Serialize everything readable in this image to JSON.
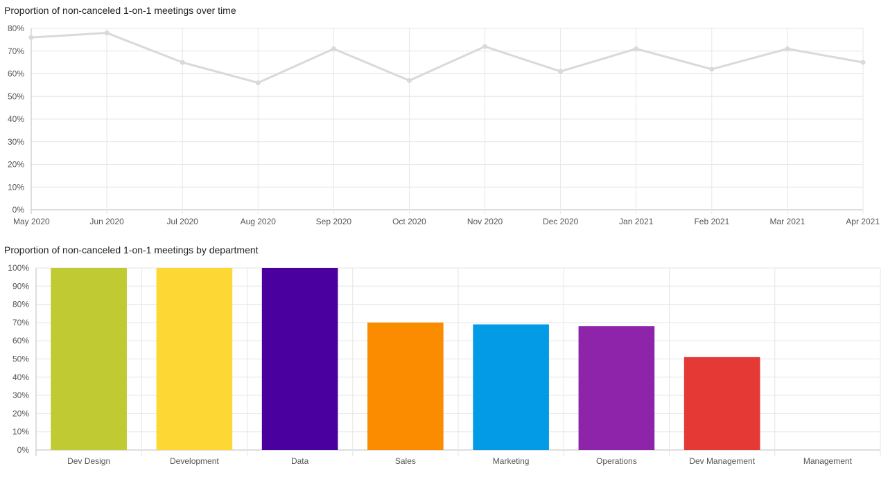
{
  "chart_data": [
    {
      "type": "line",
      "title": "Proportion of non-canceled 1-on-1 meetings over time",
      "xlabel": "",
      "ylabel": "",
      "x": [
        "May 2020",
        "Jun 2020",
        "Jul 2020",
        "Aug 2020",
        "Sep 2020",
        "Oct 2020",
        "Nov 2020",
        "Dec 2020",
        "Jan 2021",
        "Feb 2021",
        "Mar 2021",
        "Apr 2021"
      ],
      "values": [
        76,
        78,
        65,
        56,
        71,
        57,
        72,
        61,
        71,
        62,
        71,
        65
      ],
      "ylim": [
        0,
        80
      ],
      "y_ticks": [
        "0%",
        "10%",
        "20%",
        "30%",
        "40%",
        "50%",
        "60%",
        "70%",
        "80%"
      ],
      "grid": true,
      "line_color": "#d9d9d9"
    },
    {
      "type": "bar",
      "title": "Proportion of non-canceled 1-on-1 meetings by department",
      "xlabel": "",
      "ylabel": "",
      "categories": [
        "Dev Design",
        "Development",
        "Data",
        "Sales",
        "Marketing",
        "Operations",
        "Dev Management",
        "Management"
      ],
      "values": [
        100,
        100,
        100,
        70,
        69,
        68,
        51,
        0
      ],
      "colors": [
        "#c0ca33",
        "#fdd835",
        "#4a009f",
        "#fb8c00",
        "#039be5",
        "#8e24aa",
        "#e53935",
        "#9e9e9e"
      ],
      "ylim": [
        0,
        100
      ],
      "y_ticks": [
        "0%",
        "10%",
        "20%",
        "30%",
        "40%",
        "50%",
        "60%",
        "70%",
        "80%",
        "90%",
        "100%"
      ],
      "grid": true
    }
  ]
}
